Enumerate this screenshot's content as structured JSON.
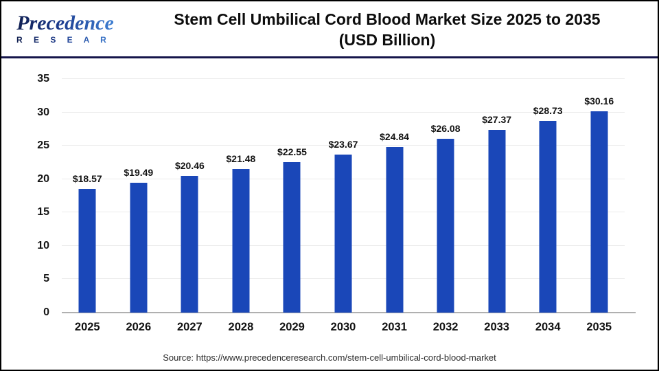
{
  "header": {
    "logo_line1": "Precedence",
    "logo_line2": "R E S E A R C H",
    "title_line1": "Stem Cell Umbilical Cord Blood Market Size 2025 to 2035",
    "title_line2": "(USD Billion)"
  },
  "chart_data": {
    "type": "bar",
    "title": "Stem Cell Umbilical Cord Blood Market Size 2025 to 2035 (USD Billion)",
    "categories": [
      "2025",
      "2026",
      "2027",
      "2028",
      "2029",
      "2030",
      "2031",
      "2032",
      "2033",
      "2034",
      "2035"
    ],
    "values": [
      18.57,
      19.49,
      20.46,
      21.48,
      22.55,
      23.67,
      24.84,
      26.08,
      27.37,
      28.73,
      30.16
    ],
    "value_labels": [
      "$18.57",
      "$19.49",
      "$20.46",
      "$21.48",
      "$22.55",
      "$23.67",
      "$24.84",
      "$26.08",
      "$27.37",
      "$28.73",
      "$30.16"
    ],
    "value_prefix": "$",
    "xlabel": "",
    "ylabel": "",
    "ylim": [
      0,
      35
    ],
    "yticks": [
      0,
      5,
      10,
      15,
      20,
      25,
      30,
      35
    ],
    "grid": true,
    "legend": "none",
    "bar_color": "#1a47b8"
  },
  "footer": {
    "source": "Source: https://www.precedenceresearch.com/stem-cell-umbilical-cord-blood-market"
  },
  "colors": {
    "bar": "#1a47b8",
    "divider": "#15154a",
    "gridline": "#ebebeb",
    "baseline": "#b0b0b0",
    "logo_dark": "#101e4e",
    "logo_light": "#3f82d6",
    "title_text": "#0d0d0d"
  }
}
